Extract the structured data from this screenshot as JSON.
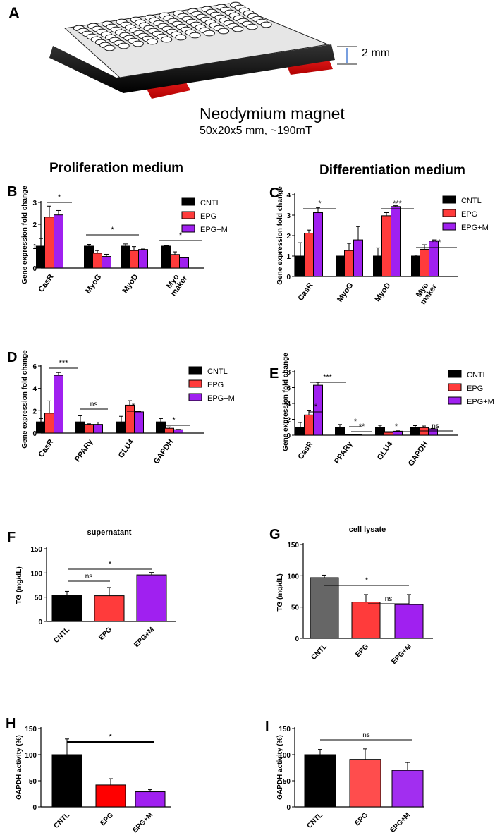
{
  "panelA": {
    "letter": "A",
    "magnet_label": "Neodymium magnet",
    "magnet_spec": "50x20x5  mm, ~190mT",
    "gap_label": "2 mm"
  },
  "sections": {
    "proliferation": "Proliferation medium",
    "differentiation": "Differentiation medium"
  },
  "colors": {
    "CNTL": "#000000",
    "EPG": "#ff3b3b",
    "EPG+M": "#a020f0",
    "CNTL_gray": "#666666",
    "EPG_light": "#ff4d4d",
    "EPG+M_light": "#a22ef0"
  },
  "chart_data": [
    {
      "id": "B",
      "type": "bar",
      "title": "",
      "ylabel": "Gene expression fold change",
      "ylim": [
        0,
        3
      ],
      "yticks": [
        "0",
        "1",
        "2",
        "3"
      ],
      "categories": [
        "CasR",
        "MyoG",
        "MyoD",
        "Myo maker"
      ],
      "series": [
        {
          "name": "CNTL",
          "values": [
            1.0,
            1.0,
            1.0,
            1.0
          ],
          "err": [
            0.35,
            0.08,
            0.1,
            0.02
          ]
        },
        {
          "name": "EPG",
          "values": [
            2.33,
            0.68,
            0.8,
            0.62
          ],
          "err": [
            0.5,
            0.12,
            0.18,
            0.12
          ]
        },
        {
          "name": "EPG+M",
          "values": [
            2.43,
            0.53,
            0.85,
            0.47
          ],
          "err": [
            0.2,
            0.1,
            0.02,
            0.02
          ]
        }
      ],
      "legend": [
        "CNTL",
        "EPG",
        "EPG+M"
      ],
      "sig": [
        "*",
        "*",
        "*"
      ]
    },
    {
      "id": "C",
      "type": "bar",
      "title": "",
      "ylabel": "Gene expression fold change",
      "ylim": [
        0,
        4
      ],
      "yticks": [
        "0",
        "1",
        "2",
        "3",
        "4"
      ],
      "categories": [
        "CasR",
        "MyoG",
        "MyoD",
        "Myo maker"
      ],
      "series": [
        {
          "name": "CNTL",
          "values": [
            1.0,
            1.0,
            1.0,
            1.0
          ],
          "err": [
            0.65,
            0.0,
            0.4,
            0.05
          ]
        },
        {
          "name": "EPG",
          "values": [
            2.12,
            1.27,
            2.97,
            1.33
          ],
          "err": [
            0.15,
            0.35,
            0.15,
            0.22
          ]
        },
        {
          "name": "EPG+M",
          "values": [
            3.12,
            1.79,
            3.42,
            1.73
          ],
          "err": [
            0.25,
            0.65,
            0.04,
            0.06
          ]
        }
      ],
      "legend": [
        "CNTL",
        "EPG",
        "EPG+M"
      ],
      "sig": [
        "*",
        "***",
        "***"
      ]
    },
    {
      "id": "D",
      "type": "bar",
      "title": "",
      "ylabel": "Gene expression fold change",
      "ylim": [
        0,
        6
      ],
      "yticks": [
        "0",
        "2",
        "4",
        "6"
      ],
      "categories": [
        "CasR",
        "PPARγ",
        "GLU4",
        "GAPDH"
      ],
      "series": [
        {
          "name": "CNTL",
          "values": [
            1.0,
            1.0,
            1.0,
            1.0
          ],
          "err": [
            0.3,
            0.55,
            0.5,
            0.3
          ]
        },
        {
          "name": "EPG",
          "values": [
            1.78,
            0.78,
            2.5,
            0.43
          ],
          "err": [
            1.1,
            0.05,
            0.4,
            0.12
          ]
        },
        {
          "name": "EPG+M",
          "values": [
            5.17,
            0.78,
            1.9,
            0.3
          ],
          "err": [
            0.25,
            0.2,
            0.05,
            0.03
          ]
        }
      ],
      "legend": [
        "CNTL",
        "EPG",
        "EPG+M"
      ],
      "sig": [
        "***",
        "ns",
        "*",
        "*"
      ]
    },
    {
      "id": "E",
      "type": "bar",
      "title": "",
      "ylabel": "Gene expression fold change",
      "ylim": [
        0,
        8
      ],
      "yticks": [
        "0",
        "2",
        "4",
        "6",
        "8"
      ],
      "categories": [
        "CasR",
        "PPARγ",
        "GLU4",
        "GAPDH"
      ],
      "series": [
        {
          "name": "CNTL",
          "values": [
            1.0,
            1.0,
            1.0,
            1.0
          ],
          "err": [
            0.6,
            0.35,
            0.25,
            0.2
          ]
        },
        {
          "name": "EPG",
          "values": [
            2.55,
            0.05,
            0.35,
            0.95
          ],
          "err": [
            0.6,
            0.02,
            0.05,
            0.2
          ]
        },
        {
          "name": "EPG+M",
          "values": [
            6.3,
            0.05,
            0.5,
            0.8
          ],
          "err": [
            0.35,
            0.02,
            0.05,
            0.05
          ]
        }
      ],
      "legend": [
        "CNTL",
        "EPG",
        "EPG+M"
      ],
      "sig": [
        "*",
        "***",
        "*",
        "**",
        "*",
        "ns"
      ]
    },
    {
      "id": "F",
      "type": "bar",
      "title": "supernatant",
      "ylabel": "TG (mg/dL)",
      "ylim": [
        0,
        150
      ],
      "yticks": [
        "0",
        "50",
        "100",
        "150"
      ],
      "categories": [
        "CNTL",
        "EPG",
        "EPG+M"
      ],
      "values": [
        54,
        53,
        96
      ],
      "err": [
        8,
        17,
        5
      ],
      "sig": [
        "ns",
        "*"
      ]
    },
    {
      "id": "G",
      "type": "bar",
      "title": "cell lysate",
      "ylabel": "TG (mg/dL)",
      "ylim": [
        0,
        150
      ],
      "yticks": [
        "0",
        "50",
        "100",
        "150"
      ],
      "categories": [
        "CNTL",
        "EPG",
        "EPG+M"
      ],
      "values": [
        97,
        58,
        54
      ],
      "err": [
        4,
        12,
        16
      ],
      "sig": [
        "*",
        "ns"
      ]
    },
    {
      "id": "H",
      "type": "bar",
      "title": "",
      "ylabel": "GAPDH activity (%)",
      "ylim": [
        0,
        150
      ],
      "yticks": [
        "0",
        "50",
        "100",
        "150"
      ],
      "categories": [
        "CNTL",
        "EPG",
        "EPG+M"
      ],
      "values": [
        100,
        42,
        29
      ],
      "err": [
        30,
        12,
        4
      ],
      "sig": [
        "*"
      ]
    },
    {
      "id": "I",
      "type": "bar",
      "title": "",
      "ylabel": "GAPDH activity (%)",
      "ylim": [
        0,
        150
      ],
      "yticks": [
        "0",
        "50",
        "100",
        "150"
      ],
      "categories": [
        "CNTL",
        "EPG",
        "EPG+M"
      ],
      "values": [
        100,
        91,
        70
      ],
      "err": [
        10,
        20,
        15
      ],
      "sig": [
        "ns"
      ]
    }
  ]
}
